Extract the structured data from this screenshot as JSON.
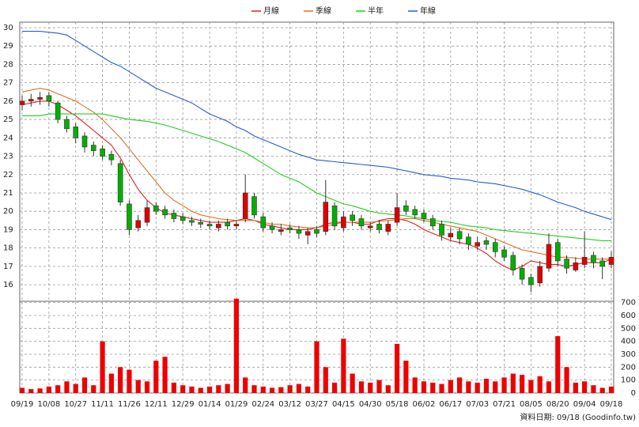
{
  "chart_data": {
    "type": "candlestick",
    "categories": [
      "09/19",
      null,
      null,
      "10/08",
      null,
      null,
      "10/27",
      null,
      null,
      "11/11",
      null,
      null,
      "11/26",
      null,
      null,
      "12/11",
      null,
      null,
      "12/29",
      null,
      null,
      "01/14",
      null,
      null,
      "01/29",
      null,
      null,
      "02/24",
      null,
      null,
      "03/12",
      null,
      null,
      "03/27",
      null,
      null,
      "04/15",
      null,
      null,
      "04/30",
      null,
      null,
      "05/18",
      null,
      null,
      "06/02",
      null,
      null,
      "06/17",
      null,
      null,
      "07/03",
      null,
      null,
      "07/21",
      null,
      null,
      "08/05",
      null,
      null,
      "08/20",
      null,
      null,
      "09/04",
      null,
      null,
      "09/18"
    ],
    "open": [
      25.8,
      26.0,
      26.1,
      26.3,
      25.9,
      25.0,
      24.6,
      24.1,
      23.6,
      23.4,
      23.1,
      22.6,
      20.4,
      19.1,
      19.4,
      20.3,
      20.1,
      19.9,
      19.7,
      19.5,
      19.4,
      19.3,
      19.1,
      19.4,
      19.2,
      19.6,
      20.8,
      19.7,
      19.2,
      18.9,
      19.1,
      19.0,
      18.7,
      19.0,
      18.9,
      20.3,
      19.1,
      19.8,
      19.6,
      19.1,
      19.3,
      18.9,
      19.4,
      20.3,
      20.1,
      19.9,
      19.6,
      19.3,
      18.6,
      18.9,
      18.6,
      18.1,
      18.4,
      18.3,
      17.9,
      17.6,
      16.9,
      16.4,
      16.1,
      16.9,
      18.3,
      17.4,
      16.8,
      17.1,
      17.6,
      17.3,
      17.1
    ],
    "high": [
      26.3,
      26.4,
      26.5,
      26.5,
      26.0,
      25.2,
      24.8,
      24.3,
      23.8,
      23.6,
      23.3,
      22.8,
      20.6,
      19.8,
      20.6,
      20.5,
      20.3,
      20.1,
      19.9,
      19.7,
      19.6,
      19.5,
      19.5,
      19.6,
      19.5,
      22.0,
      21.0,
      19.9,
      19.4,
      19.3,
      19.3,
      19.2,
      19.1,
      19.2,
      21.7,
      20.5,
      20.0,
      20.0,
      19.8,
      19.4,
      19.5,
      19.5,
      21.0,
      20.6,
      20.3,
      20.1,
      19.8,
      19.5,
      19.1,
      19.1,
      18.8,
      18.6,
      18.6,
      18.5,
      18.1,
      17.8,
      17.1,
      16.6,
      17.3,
      18.8,
      18.5,
      17.6,
      17.5,
      18.9,
      17.8,
      17.5,
      17.8
    ],
    "low": [
      25.5,
      25.7,
      25.8,
      25.7,
      24.8,
      24.3,
      23.7,
      23.2,
      23.0,
      22.8,
      22.5,
      20.3,
      18.7,
      18.9,
      19.2,
      19.8,
      19.6,
      19.4,
      19.3,
      19.2,
      19.1,
      19.0,
      18.9,
      19.0,
      19.0,
      19.4,
      19.6,
      18.9,
      18.8,
      18.7,
      18.8,
      18.5,
      18.2,
      18.6,
      18.7,
      19.0,
      18.9,
      19.2,
      19.0,
      18.9,
      18.8,
      18.7,
      19.2,
      19.8,
      19.6,
      19.4,
      19.0,
      18.4,
      18.4,
      18.2,
      17.9,
      17.9,
      17.9,
      17.5,
      17.3,
      16.5,
      16.0,
      15.6,
      15.9,
      16.7,
      17.0,
      16.6,
      16.7,
      16.9,
      16.9,
      16.3,
      16.9
    ],
    "close": [
      26.0,
      26.1,
      26.2,
      26.0,
      25.0,
      24.5,
      24.0,
      23.5,
      23.3,
      23.0,
      22.8,
      20.5,
      19.0,
      19.5,
      20.2,
      20.0,
      19.8,
      19.6,
      19.5,
      19.4,
      19.3,
      19.2,
      19.3,
      19.2,
      19.3,
      21.0,
      19.8,
      19.1,
      19.0,
      19.0,
      19.0,
      18.8,
      18.9,
      18.8,
      20.5,
      19.2,
      19.7,
      19.5,
      19.2,
      19.2,
      19.0,
      19.3,
      20.2,
      20.0,
      19.8,
      19.6,
      19.2,
      18.7,
      18.8,
      18.5,
      18.2,
      18.3,
      18.2,
      17.8,
      17.5,
      16.8,
      16.3,
      16.0,
      17.0,
      18.2,
      17.3,
      16.9,
      17.2,
      17.5,
      17.2,
      17.0,
      17.5
    ],
    "up_color": "#e00000",
    "down_color": "#00b000",
    "moving_averages": [
      {
        "name": "月線",
        "color": "#e02020",
        "values": [
          25.8,
          25.9,
          26.0,
          26.0,
          25.8,
          25.5,
          25.2,
          24.8,
          24.4,
          24.0,
          23.6,
          22.9,
          22.0,
          21.2,
          20.6,
          20.2,
          19.9,
          19.8,
          19.7,
          19.6,
          19.5,
          19.4,
          19.4,
          19.4,
          19.5,
          19.6,
          19.5,
          19.3,
          19.2,
          19.1,
          19.0,
          19.0,
          19.0,
          19.1,
          19.3,
          19.4,
          19.4,
          19.4,
          19.3,
          19.3,
          19.5,
          19.6,
          19.6,
          19.5,
          19.3,
          19.0,
          18.8,
          18.6,
          18.4,
          18.3,
          18.2,
          18.0,
          17.7,
          17.3,
          17.0,
          16.8,
          17.0,
          17.3,
          17.2,
          17.1,
          17.1,
          17.0,
          17.1,
          17.2,
          17.2,
          17.2,
          17.4
        ]
      },
      {
        "name": "季線",
        "color": "#e07020",
        "values": [
          26.5,
          26.6,
          26.7,
          26.6,
          26.4,
          26.2,
          26.0,
          25.7,
          25.4,
          25.0,
          24.5,
          24.0,
          23.4,
          22.8,
          22.2,
          21.6,
          21.0,
          20.6,
          20.3,
          20.0,
          19.8,
          19.7,
          19.6,
          19.55,
          19.5,
          19.5,
          19.5,
          19.4,
          19.3,
          19.3,
          19.2,
          19.15,
          19.1,
          19.1,
          19.2,
          19.3,
          19.4,
          19.4,
          19.4,
          19.4,
          19.45,
          19.5,
          19.55,
          19.6,
          19.6,
          19.5,
          19.4,
          19.3,
          19.2,
          19.1,
          19.0,
          18.9,
          18.7,
          18.5,
          18.3,
          18.1,
          17.9,
          17.8,
          17.7,
          17.6,
          17.5,
          17.5,
          17.45,
          17.4,
          17.4,
          17.4,
          17.4
        ]
      },
      {
        "name": "半年",
        "color": "#20d020",
        "values": [
          25.2,
          25.2,
          25.2,
          25.3,
          25.3,
          25.3,
          25.3,
          25.3,
          25.3,
          25.3,
          25.2,
          25.1,
          25.0,
          24.95,
          24.9,
          24.8,
          24.7,
          24.55,
          24.4,
          24.25,
          24.1,
          23.95,
          23.8,
          23.6,
          23.4,
          23.2,
          22.9,
          22.6,
          22.3,
          22.0,
          21.8,
          21.6,
          21.3,
          21.0,
          20.8,
          20.6,
          20.4,
          20.3,
          20.15,
          20.0,
          19.9,
          19.85,
          19.8,
          19.75,
          19.65,
          19.6,
          19.5,
          19.45,
          19.4,
          19.3,
          19.2,
          19.15,
          19.1,
          19.0,
          18.95,
          18.9,
          18.85,
          18.8,
          18.75,
          18.7,
          18.65,
          18.6,
          18.55,
          18.5,
          18.45,
          18.4,
          18.4
        ]
      },
      {
        "name": "年線",
        "color": "#2060d0",
        "values": [
          29.8,
          29.8,
          29.8,
          29.75,
          29.7,
          29.6,
          29.3,
          29.0,
          28.7,
          28.4,
          28.1,
          27.9,
          27.6,
          27.3,
          27.0,
          26.7,
          26.5,
          26.3,
          26.1,
          25.9,
          25.6,
          25.3,
          25.1,
          24.9,
          24.6,
          24.4,
          24.1,
          23.9,
          23.7,
          23.5,
          23.3,
          23.1,
          22.95,
          22.8,
          22.75,
          22.7,
          22.65,
          22.6,
          22.55,
          22.5,
          22.45,
          22.4,
          22.3,
          22.2,
          22.1,
          22.0,
          21.95,
          21.9,
          21.8,
          21.75,
          21.7,
          21.6,
          21.55,
          21.5,
          21.4,
          21.3,
          21.2,
          21.05,
          20.9,
          20.7,
          20.5,
          20.35,
          20.2,
          20.0,
          19.85,
          19.7,
          19.55
        ]
      }
    ],
    "volume": [
      40,
      30,
      35,
      50,
      60,
      90,
      70,
      120,
      60,
      400,
      150,
      200,
      180,
      100,
      90,
      250,
      280,
      80,
      60,
      50,
      40,
      50,
      60,
      70,
      730,
      120,
      60,
      50,
      40,
      45,
      60,
      70,
      50,
      400,
      200,
      80,
      420,
      150,
      90,
      80,
      100,
      60,
      380,
      250,
      120,
      90,
      80,
      70,
      100,
      120,
      90,
      80,
      110,
      90,
      120,
      150,
      140,
      100,
      130,
      90,
      440,
      200,
      80,
      90,
      60,
      40,
      50
    ],
    "volume_color": "#ee0000",
    "ylim": [
      15.1,
      30.3
    ],
    "yticks": [
      16,
      17,
      18,
      19,
      20,
      21,
      22,
      23,
      24,
      25,
      26,
      27,
      28,
      29,
      30
    ],
    "y2lim": [
      0,
      710
    ],
    "y2ticks": [
      0,
      100,
      200,
      300,
      400,
      500,
      600,
      700
    ],
    "grid": true,
    "footer": "資料日期: 09/18 (Goodinfo.tw)"
  }
}
